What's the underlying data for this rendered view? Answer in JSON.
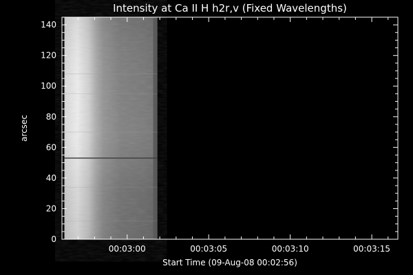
{
  "chart_data": {
    "type": "heatmap",
    "title": "Intensity at Ca II H h2r,v (Fixed Wavelengths)",
    "xlabel": "Start Time (09-Aug-08 00:02:56)",
    "ylabel": "arcsec",
    "x_tick_labels": [
      "00:03:00",
      "00:03:05",
      "00:03:10",
      "00:03:15"
    ],
    "x_tick_values_sec": [
      4,
      9,
      14,
      19
    ],
    "xlim_sec": [
      0,
      20.6
    ],
    "y_tick_labels": [
      "0",
      "20",
      "40",
      "60",
      "80",
      "100",
      "120",
      "140"
    ],
    "y_tick_values": [
      0,
      20,
      40,
      60,
      80,
      100,
      120,
      140
    ],
    "ylim": [
      0,
      145
    ],
    "data_extent_sec": [
      0.15,
      5.85
    ],
    "image_description_colormap": "grayscale",
    "colors": {
      "background": "#000000",
      "axes": "#ffffff",
      "bright_core": "#e6e6e6",
      "mid_gray": "#8a8a8a",
      "dark_gray": "#555555"
    }
  }
}
